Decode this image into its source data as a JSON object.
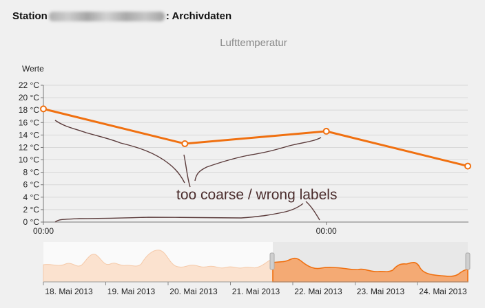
{
  "header": {
    "prefix": "Station",
    "suffix": ": Archivdaten"
  },
  "colors": {
    "series": "#f07010",
    "annotation": "#5a3a3a",
    "grid": "#d8d8d8",
    "navigator_fill": "#f0a060",
    "navigator_fill_light": "#fbe2cf"
  },
  "chart_data": {
    "type": "line",
    "title": "Lufttemperatur",
    "ylabel": "Werte",
    "ylim": [
      0,
      22
    ],
    "y_ticks": [
      "0 °C",
      "2 °C",
      "4 °C",
      "6 °C",
      "8 °C",
      "10 °C",
      "12 °C",
      "14 °C",
      "16 °C",
      "18 °C",
      "20 °C",
      "22 °C"
    ],
    "x_tick_labels": [
      {
        "label": "00:00",
        "x": 0
      },
      {
        "label": "00:00",
        "x": 24
      }
    ],
    "xlim": [
      0,
      36
    ],
    "series": [
      {
        "x": [
          0,
          12,
          24,
          36
        ],
        "values": [
          18.2,
          12.6,
          14.6,
          9.0
        ]
      }
    ],
    "annotation": "too coarse / wrong labels",
    "navigator": {
      "date_labels": [
        "18. Mai 2013",
        "19. Mai 2013",
        "20. Mai 2013",
        "21. Mai 2013",
        "22. Mai 2013",
        "23. Mai 2013",
        "24. Mai 2013"
      ],
      "selected_range": [
        "21. Mai 2013",
        "24. Mai 2013"
      ]
    }
  }
}
